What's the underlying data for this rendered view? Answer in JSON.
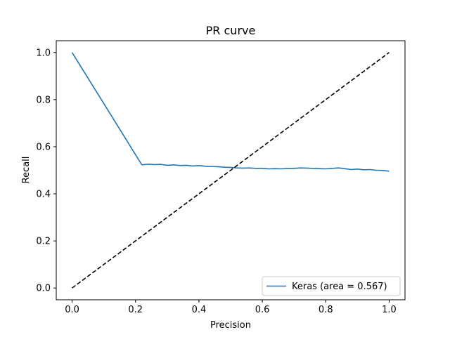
{
  "chart_data": {
    "type": "line",
    "title": "PR curve",
    "xlabel": "Precision",
    "ylabel": "Recall",
    "xlim": [
      -0.05,
      1.05
    ],
    "ylim": [
      -0.05,
      1.05
    ],
    "xticks": [
      0.0,
      0.2,
      0.4,
      0.6,
      0.8,
      1.0
    ],
    "yticks": [
      0.0,
      0.2,
      0.4,
      0.6,
      0.8,
      1.0
    ],
    "xtick_labels": [
      "0.0",
      "0.2",
      "0.4",
      "0.6",
      "0.8",
      "1.0"
    ],
    "ytick_labels": [
      "0.0",
      "0.2",
      "0.4",
      "0.6",
      "0.8",
      "1.0"
    ],
    "grid": false,
    "legend_position": "lower-right",
    "series": [
      {
        "name": "Keras (area = 0.567)",
        "color": "#1f77b4",
        "style": "solid",
        "x": [
          0.0,
          0.22,
          0.24,
          0.26,
          0.28,
          0.3,
          0.32,
          0.34,
          0.36,
          0.38,
          0.4,
          0.42,
          0.44,
          0.46,
          0.48,
          0.5,
          0.52,
          0.54,
          0.56,
          0.58,
          0.6,
          0.62,
          0.64,
          0.66,
          0.68,
          0.7,
          0.72,
          0.74,
          0.76,
          0.78,
          0.8,
          0.82,
          0.84,
          0.86,
          0.88,
          0.9,
          0.92,
          0.94,
          0.96,
          0.98,
          1.0
        ],
        "y": [
          1.0,
          0.523,
          0.526,
          0.524,
          0.525,
          0.521,
          0.523,
          0.52,
          0.521,
          0.518,
          0.52,
          0.517,
          0.516,
          0.515,
          0.513,
          0.512,
          0.51,
          0.509,
          0.51,
          0.508,
          0.508,
          0.506,
          0.507,
          0.506,
          0.508,
          0.508,
          0.51,
          0.509,
          0.508,
          0.507,
          0.506,
          0.508,
          0.51,
          0.507,
          0.503,
          0.505,
          0.502,
          0.503,
          0.5,
          0.499,
          0.496
        ]
      },
      {
        "name": "",
        "color": "#000000",
        "style": "dashed",
        "x": [
          0.0,
          1.0
        ],
        "y": [
          0.0,
          1.0
        ]
      }
    ]
  }
}
